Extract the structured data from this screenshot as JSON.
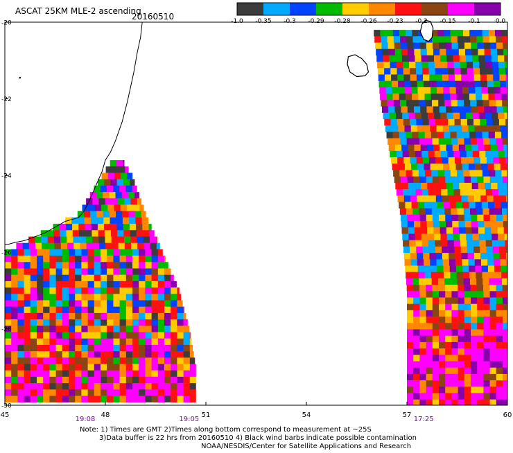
{
  "chart_data": {
    "type": "heatmap",
    "title": "ASCAT 25KM MLE-2 ascending",
    "date": "20160510",
    "xlim": [
      45,
      60
    ],
    "ylim": [
      -30,
      -20
    ],
    "x_ticks": [
      "45",
      "48",
      "51",
      "54",
      "57",
      "60"
    ],
    "y_ticks": [
      "-20",
      "-22",
      "-24",
      "-26",
      "-28",
      "-30"
    ],
    "colorbar": {
      "labels": [
        "-1.0",
        "-0.35",
        "-0.3",
        "-0.29",
        "-0.28",
        "-0.26",
        "-0.23",
        "-0.2",
        "-0.15",
        "-0.1",
        "0.0"
      ],
      "colors": [
        "#3c3c3c",
        "#00aaff",
        "#0044ff",
        "#00bb00",
        "#ffcc00",
        "#ff8800",
        "#ff1111",
        "#8b4513",
        "#ff00ff",
        "#8800aa"
      ]
    },
    "swaths": [
      {
        "time": "19:08",
        "time_lon": 47.4,
        "rows": [
          {
            "lat": -23.6,
            "lon_min": 48.2,
            "lon_max": 48.5
          },
          {
            "lat": -24.0,
            "lon_min": 47.9,
            "lon_max": 48.8
          },
          {
            "lat": -25.0,
            "lon_min": 47.2,
            "lon_max": 49.2
          },
          {
            "lat": -26.0,
            "lon_min": 45.0,
            "lon_max": 49.7
          },
          {
            "lat": -27.0,
            "lon_min": 45.0,
            "lon_max": 50.2
          },
          {
            "lat": -28.0,
            "lon_min": 45.0,
            "lon_max": 50.5
          },
          {
            "lat": -29.0,
            "lon_min": 45.0,
            "lon_max": 50.7
          },
          {
            "lat": -30.0,
            "lon_min": 45.0,
            "lon_max": 50.7
          }
        ],
        "value_regions": [
          {
            "lat_from": -24.0,
            "lat_to": -27.6,
            "weights": [
              1,
              2,
              2,
              2,
              3,
              2,
              3,
              1,
              2,
              1
            ]
          },
          {
            "lat_from": -27.6,
            "lat_to": -28.8,
            "weights": [
              1,
              1,
              1,
              1,
              2,
              3,
              3,
              2,
              3,
              1
            ]
          },
          {
            "lat_from": -28.8,
            "lat_to": -30.0,
            "weights": [
              1,
              0,
              0,
              1,
              1,
              2,
              3,
              2,
              6,
              1
            ]
          }
        ]
      },
      {
        "time": "19:05",
        "time_lon": 50.5,
        "rows": []
      },
      {
        "time": "17:25",
        "time_lon": 57.5,
        "rows": [
          {
            "lat": -20.2,
            "lon_min": 56.0,
            "lon_max": 60.0
          },
          {
            "lat": -21.0,
            "lon_min": 56.1,
            "lon_max": 60.0
          },
          {
            "lat": -22.0,
            "lon_min": 56.2,
            "lon_max": 60.0
          },
          {
            "lat": -23.0,
            "lon_min": 56.4,
            "lon_max": 60.0
          },
          {
            "lat": -24.0,
            "lon_min": 56.6,
            "lon_max": 60.0
          },
          {
            "lat": -25.0,
            "lon_min": 56.8,
            "lon_max": 60.0
          },
          {
            "lat": -26.0,
            "lon_min": 56.9,
            "lon_max": 60.0
          },
          {
            "lat": -27.0,
            "lon_min": 57.0,
            "lon_max": 60.0
          },
          {
            "lat": -28.0,
            "lon_min": 57.0,
            "lon_max": 60.0
          },
          {
            "lat": -29.0,
            "lon_min": 57.0,
            "lon_max": 60.0
          },
          {
            "lat": -30.0,
            "lon_min": 57.0,
            "lon_max": 60.0
          }
        ],
        "value_regions": [
          {
            "lat_from": -20.0,
            "lat_to": -22.0,
            "weights": [
              3,
              2,
              2,
              2,
              2,
              2,
              1,
              1,
              1,
              1
            ]
          },
          {
            "lat_from": -22.0,
            "lat_to": -23.0,
            "weights": [
              3,
              3,
              2,
              1,
              2,
              2,
              1,
              1,
              1,
              1
            ]
          },
          {
            "lat_from": -23.0,
            "lat_to": -26.5,
            "weights": [
              0,
              3,
              1,
              1,
              2,
              2,
              2,
              1,
              1,
              1
            ]
          },
          {
            "lat_from": -26.5,
            "lat_to": -28.0,
            "weights": [
              0,
              1,
              0,
              1,
              2,
              3,
              2,
              2,
              2,
              1
            ]
          },
          {
            "lat_from": -28.0,
            "lat_to": -30.0,
            "weights": [
              0,
              0,
              0,
              0,
              1,
              2,
              2,
              1,
              6,
              2
            ]
          }
        ]
      }
    ],
    "islands": [
      "Reunion",
      "Mauritius"
    ],
    "coastline": "Madagascar southwest coast"
  },
  "notes": {
    "line1": "Note: 1) Times are GMT 2)Times along bottom correspond to measurement at ~25S",
    "line2": "3)Data buffer is 22 hrs from 20160510 4) Black wind barbs indicate possible contamination",
    "line3": "NOAA/NESDIS/Center for Satellite Applications and Research"
  },
  "colors": {
    "axis": "#000000",
    "time_label": "#8800aa",
    "coastline": "#000000"
  }
}
